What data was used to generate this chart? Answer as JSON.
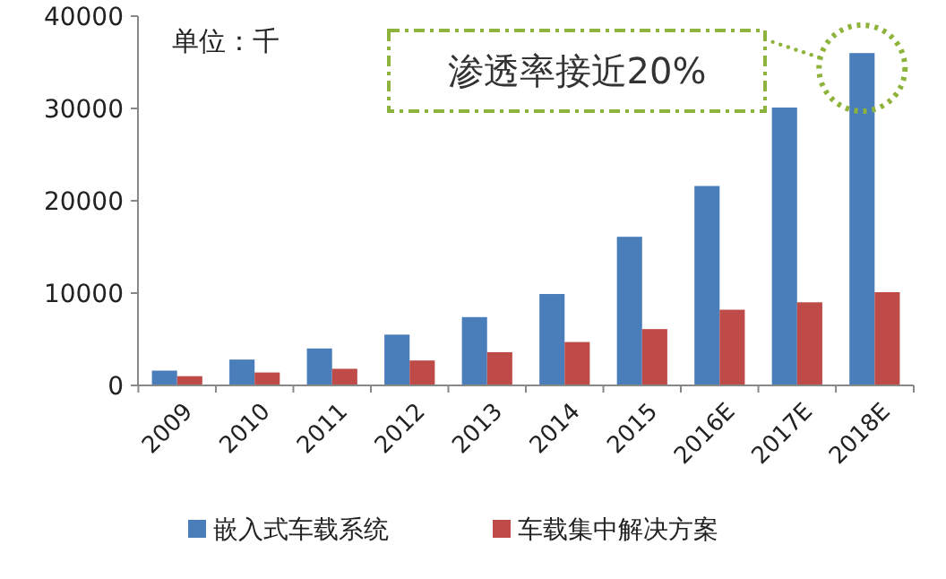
{
  "chart_data": {
    "type": "bar",
    "categories": [
      "2009",
      "2010",
      "2011",
      "2012",
      "2013",
      "2014",
      "2015",
      "2016E",
      "2017E",
      "2018E"
    ],
    "series": [
      {
        "name": "嵌入式车载系统",
        "color": "#4a7ebb",
        "values": [
          1600,
          2800,
          4000,
          5500,
          7400,
          9900,
          16100,
          21600,
          30100,
          36000
        ]
      },
      {
        "name": "车载集中解决方案",
        "color": "#be4b48",
        "values": [
          1000,
          1400,
          1800,
          2700,
          3600,
          4700,
          6100,
          8200,
          9000,
          10100
        ]
      }
    ],
    "ylim": [
      0,
      40000
    ],
    "yticks": [
      0,
      10000,
      20000,
      30000,
      40000
    ],
    "grid": false,
    "legend": "bottom",
    "annotations": [
      "单位：千",
      "渗透率接近20%"
    ]
  }
}
